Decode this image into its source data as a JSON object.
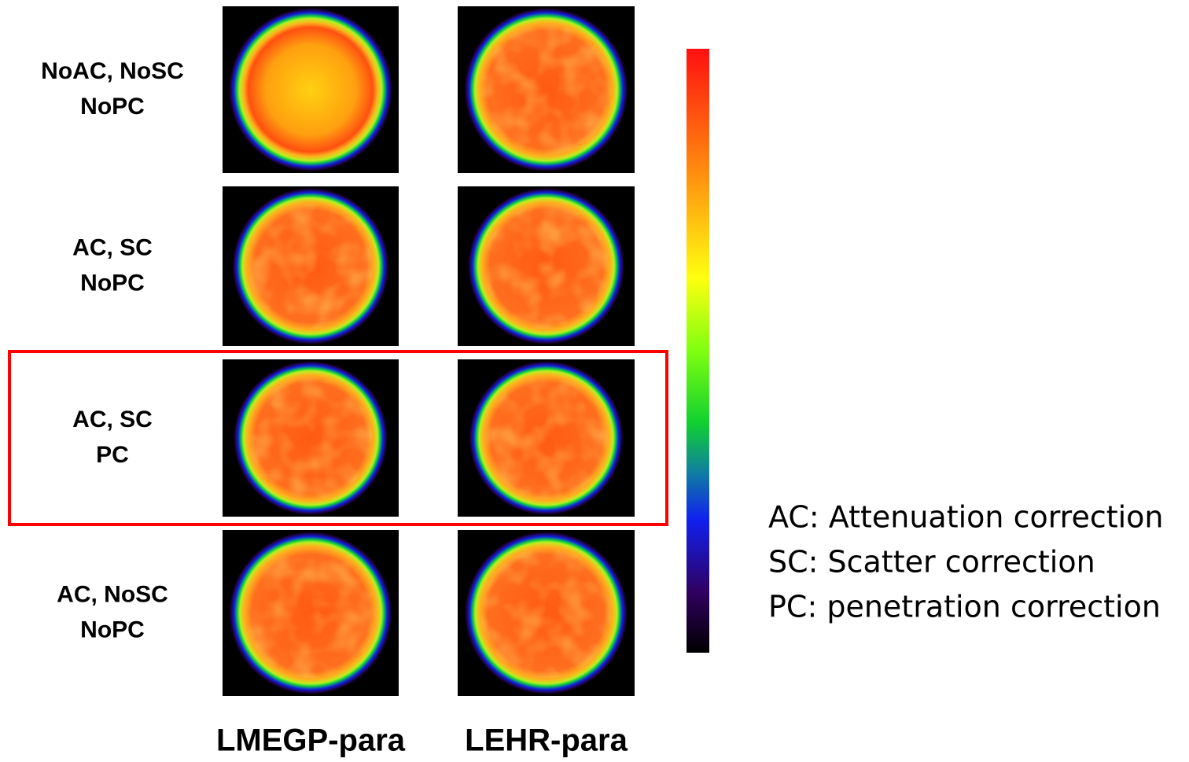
{
  "rows": [
    {
      "label_lines": [
        "NoAC, NoSC",
        "NoPC"
      ]
    },
    {
      "label_lines": [
        "AC, SC",
        "NoPC"
      ]
    },
    {
      "label_lines": [
        "AC, SC",
        "PC"
      ]
    },
    {
      "label_lines": [
        "AC, NoSC",
        "NoPC"
      ]
    }
  ],
  "columns": [
    "LMEGP-para",
    "LEHR-para"
  ],
  "legend": [
    "AC: Attenuation correction",
    "SC: Scatter correction",
    "PC: penetration correction"
  ]
}
